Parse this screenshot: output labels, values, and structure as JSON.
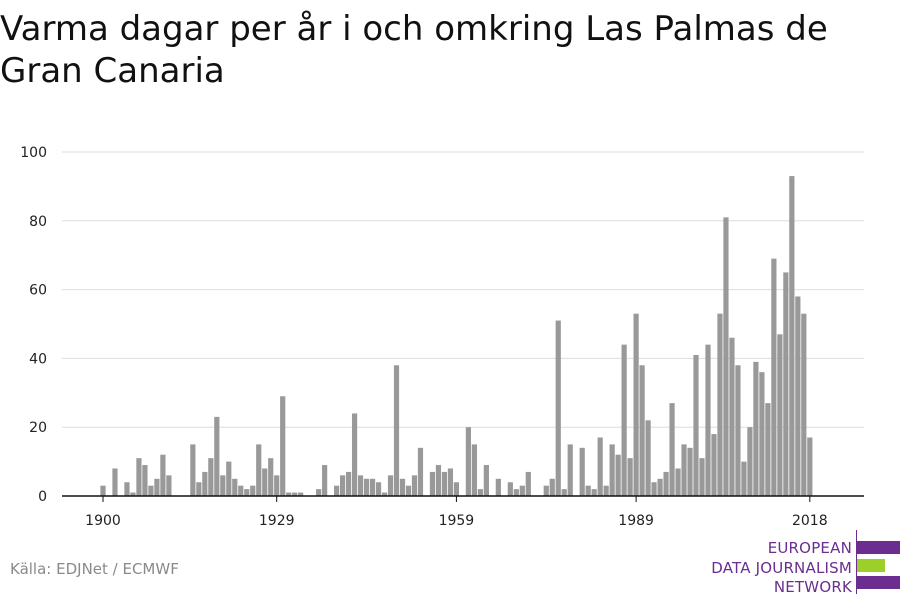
{
  "title": "Varma dagar per år i och omkring Las Palmas de Gran Canaria",
  "source": "Källa: EDJNet / ECMWF",
  "logo": {
    "lines": [
      "EUROPEAN",
      "DATA JOURNALISM",
      "NETWORK"
    ],
    "colors": {
      "text": "#6b2d8f",
      "purple": "#6b2d8f",
      "green": "#9ccf2a"
    }
  },
  "colors": {
    "bar": "#999999",
    "grid": "#dddddd",
    "axis": "#111111"
  },
  "chart_data": {
    "type": "bar",
    "title": "Varma dagar per år i och omkring Las Palmas de Gran Canaria",
    "xlabel": "",
    "ylabel": "",
    "ylim": [
      0,
      100
    ],
    "yticks": [
      0,
      20,
      40,
      60,
      80,
      100
    ],
    "xticks": [
      1900,
      1929,
      1959,
      1989,
      2018
    ],
    "grid": true,
    "x_start": 1900,
    "categories": [
      1900,
      1901,
      1902,
      1903,
      1904,
      1905,
      1906,
      1907,
      1908,
      1909,
      1910,
      1911,
      1912,
      1913,
      1914,
      1915,
      1916,
      1917,
      1918,
      1919,
      1920,
      1921,
      1922,
      1923,
      1924,
      1925,
      1926,
      1927,
      1928,
      1929,
      1930,
      1931,
      1932,
      1933,
      1934,
      1935,
      1936,
      1937,
      1938,
      1939,
      1940,
      1941,
      1942,
      1943,
      1944,
      1945,
      1946,
      1947,
      1948,
      1949,
      1950,
      1951,
      1952,
      1953,
      1954,
      1955,
      1956,
      1957,
      1958,
      1959,
      1960,
      1961,
      1962,
      1963,
      1964,
      1965,
      1966,
      1967,
      1968,
      1969,
      1970,
      1971,
      1972,
      1973,
      1974,
      1975,
      1976,
      1977,
      1978,
      1979,
      1980,
      1981,
      1982,
      1983,
      1984,
      1985,
      1986,
      1987,
      1988,
      1989,
      1990,
      1991,
      1992,
      1993,
      1994,
      1995,
      1996,
      1997,
      1998,
      1999,
      2000,
      2001,
      2002,
      2003,
      2004,
      2005,
      2006,
      2007,
      2008,
      2009,
      2010,
      2011,
      2012,
      2013,
      2014,
      2015,
      2016,
      2017,
      2018
    ],
    "values": [
      3,
      0,
      8,
      0,
      4,
      1,
      11,
      9,
      3,
      5,
      12,
      6,
      0,
      0,
      0,
      15,
      4,
      7,
      11,
      23,
      6,
      10,
      5,
      3,
      2,
      3,
      15,
      8,
      11,
      6,
      29,
      1,
      1,
      1,
      0,
      0,
      2,
      9,
      0,
      3,
      6,
      7,
      24,
      6,
      5,
      5,
      4,
      1,
      6,
      38,
      5,
      3,
      6,
      14,
      0,
      7,
      9,
      7,
      8,
      4,
      0,
      20,
      15,
      2,
      9,
      0,
      5,
      0,
      4,
      2,
      3,
      7,
      0,
      0,
      3,
      5,
      51,
      2,
      15,
      0,
      14,
      3,
      2,
      17,
      3,
      15,
      12,
      44,
      11,
      53,
      38,
      22,
      4,
      5,
      7,
      27,
      8,
      15,
      14,
      41,
      11,
      44,
      18,
      53,
      81,
      46,
      38,
      10,
      20,
      39,
      36,
      27,
      69,
      47,
      65,
      93,
      58,
      53,
      17
    ]
  }
}
